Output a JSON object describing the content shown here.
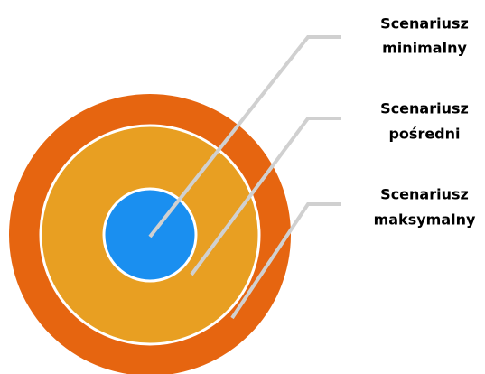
{
  "labels": [
    {
      "lines": [
        "Scenariusz",
        "minimalny"
      ]
    },
    {
      "lines": [
        "Scenariusz",
        "pośredni"
      ]
    },
    {
      "lines": [
        "Scenariusz",
        "maksymalny"
      ]
    }
  ]
}
